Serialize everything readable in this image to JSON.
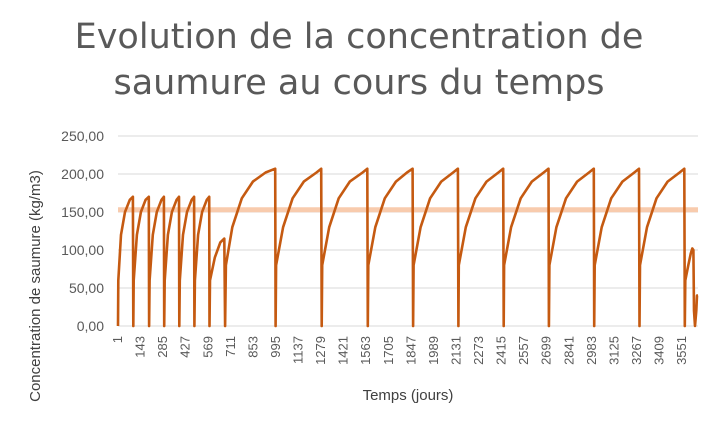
{
  "chart_data": {
    "type": "line",
    "title": "Evolution de la concentration de\nsaumure au cours du temps",
    "xlabel": "Temps (jours)",
    "ylabel": "Concentration de saumure (kg/m3)",
    "ylim": [
      0,
      250
    ],
    "yticks": [
      "0,00",
      "50,00",
      "100,00",
      "150,00",
      "200,00",
      "250,00"
    ],
    "xtick_labels": [
      "1",
      "143",
      "285",
      "427",
      "569",
      "711",
      "853",
      "995",
      "1137",
      "1279",
      "1421",
      "1563",
      "1705",
      "1847",
      "1989",
      "2131",
      "2273",
      "2415",
      "2557",
      "2699",
      "2841",
      "2983",
      "3125",
      "3267",
      "3409",
      "3551"
    ],
    "xlim": [
      1,
      3651
    ],
    "grid": true,
    "legend": "none",
    "series": [
      {
        "color": "#c55a11",
        "points": [
          [
            1,
            0
          ],
          [
            3,
            60
          ],
          [
            20,
            120
          ],
          [
            45,
            150
          ],
          [
            75,
            166
          ],
          [
            95,
            170
          ],
          [
            97,
            0
          ],
          [
            100,
            60
          ],
          [
            120,
            120
          ],
          [
            145,
            150
          ],
          [
            175,
            166
          ],
          [
            195,
            170
          ],
          [
            197,
            0
          ],
          [
            200,
            60
          ],
          [
            220,
            120
          ],
          [
            245,
            150
          ],
          [
            275,
            166
          ],
          [
            290,
            170
          ],
          [
            292,
            0
          ],
          [
            295,
            60
          ],
          [
            315,
            120
          ],
          [
            340,
            150
          ],
          [
            370,
            166
          ],
          [
            385,
            170
          ],
          [
            387,
            0
          ],
          [
            390,
            60
          ],
          [
            410,
            120
          ],
          [
            435,
            150
          ],
          [
            465,
            166
          ],
          [
            480,
            170
          ],
          [
            482,
            0
          ],
          [
            485,
            60
          ],
          [
            505,
            120
          ],
          [
            530,
            150
          ],
          [
            560,
            166
          ],
          [
            575,
            170
          ],
          [
            577,
            0
          ],
          [
            580,
            60
          ],
          [
            610,
            90
          ],
          [
            645,
            110
          ],
          [
            670,
            115
          ],
          [
            675,
            0
          ],
          [
            680,
            80
          ],
          [
            720,
            130
          ],
          [
            780,
            168
          ],
          [
            850,
            190
          ],
          [
            930,
            202
          ],
          [
            990,
            207
          ],
          [
            993,
            0
          ],
          [
            996,
            80
          ],
          [
            1040,
            130
          ],
          [
            1100,
            168
          ],
          [
            1170,
            190
          ],
          [
            1250,
            202
          ],
          [
            1280,
            207
          ],
          [
            1283,
            0
          ],
          [
            1286,
            80
          ],
          [
            1330,
            130
          ],
          [
            1390,
            168
          ],
          [
            1460,
            190
          ],
          [
            1540,
            202
          ],
          [
            1570,
            207
          ],
          [
            1573,
            0
          ],
          [
            1576,
            80
          ],
          [
            1620,
            130
          ],
          [
            1680,
            168
          ],
          [
            1750,
            190
          ],
          [
            1820,
            202
          ],
          [
            1855,
            207
          ],
          [
            1858,
            0
          ],
          [
            1861,
            80
          ],
          [
            1905,
            130
          ],
          [
            1965,
            168
          ],
          [
            2035,
            190
          ],
          [
            2110,
            202
          ],
          [
            2140,
            207
          ],
          [
            2143,
            0
          ],
          [
            2146,
            80
          ],
          [
            2190,
            130
          ],
          [
            2250,
            168
          ],
          [
            2320,
            190
          ],
          [
            2395,
            202
          ],
          [
            2425,
            207
          ],
          [
            2428,
            0
          ],
          [
            2431,
            80
          ],
          [
            2475,
            130
          ],
          [
            2535,
            168
          ],
          [
            2605,
            190
          ],
          [
            2680,
            202
          ],
          [
            2710,
            207
          ],
          [
            2713,
            0
          ],
          [
            2716,
            80
          ],
          [
            2760,
            130
          ],
          [
            2820,
            168
          ],
          [
            2890,
            190
          ],
          [
            2965,
            202
          ],
          [
            2995,
            207
          ],
          [
            2998,
            0
          ],
          [
            3001,
            80
          ],
          [
            3045,
            130
          ],
          [
            3105,
            168
          ],
          [
            3175,
            190
          ],
          [
            3250,
            202
          ],
          [
            3280,
            207
          ],
          [
            3283,
            0
          ],
          [
            3286,
            80
          ],
          [
            3330,
            130
          ],
          [
            3390,
            168
          ],
          [
            3460,
            190
          ],
          [
            3535,
            202
          ],
          [
            3565,
            207
          ],
          [
            3568,
            0
          ],
          [
            3571,
            60
          ],
          [
            3590,
            80
          ],
          [
            3605,
            95
          ],
          [
            3615,
            102
          ],
          [
            3622,
            100
          ],
          [
            3626,
            20
          ],
          [
            3632,
            0
          ],
          [
            3640,
            20
          ],
          [
            3645,
            40
          ],
          [
            3651,
            40
          ]
        ]
      },
      {
        "color": "#f8cbad",
        "points": [
          [
            1,
            153
          ],
          [
            3651,
            153
          ]
        ]
      }
    ]
  }
}
